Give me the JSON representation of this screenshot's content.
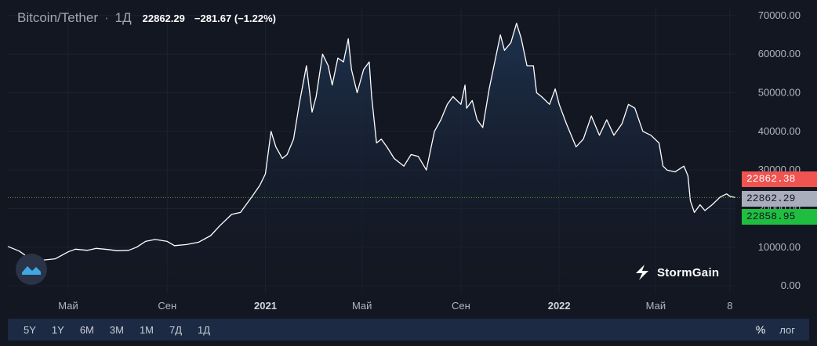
{
  "header": {
    "symbol": "Bitcoin/Tether",
    "separator": "·",
    "interval": "1Д",
    "last_price": "22862.29",
    "change": "−281.67 (−1.22%)"
  },
  "price_tags": {
    "ask": "22862.38",
    "last": "22862.29",
    "bid": "22858.95"
  },
  "toolbar": {
    "ranges": [
      "5Y",
      "1Y",
      "6M",
      "3M",
      "1M",
      "7Д",
      "1Д"
    ],
    "percent": "%",
    "log": "лог"
  },
  "brand": {
    "name": "StormGain"
  },
  "icons": {
    "brand": "stormgain-logo-icon",
    "badge": "tradingview-logo-icon"
  },
  "colors": {
    "background": "#131722",
    "line": "#ffffff",
    "area_top": "#1e3350",
    "ask": "#f05350",
    "last": "#a9aebc",
    "bid": "#1fbe40",
    "last_line": "#5a9a3a",
    "toolbar": "#1c2a44"
  },
  "chart_data": {
    "type": "area",
    "grid": true,
    "y_axis": {
      "ticks": [
        0,
        10000,
        20000,
        30000,
        40000,
        50000,
        60000,
        70000
      ],
      "tick_labels": [
        "0.00",
        "10000.00",
        "20000.00",
        "30000.00",
        "40000.00",
        "50000.00",
        "60000.00",
        "70000.00"
      ],
      "range": [
        -2000,
        72000
      ],
      "side": "right"
    },
    "x_axis": {
      "range": [
        "2020-02-16",
        "2022-08-08"
      ],
      "ticks": [
        {
          "date": "2020-05-01",
          "label": "Май",
          "bold": false
        },
        {
          "date": "2020-09-01",
          "label": "Сен",
          "bold": false
        },
        {
          "date": "2021-01-01",
          "label": "2021",
          "bold": true
        },
        {
          "date": "2021-05-01",
          "label": "Май",
          "bold": false
        },
        {
          "date": "2021-09-01",
          "label": "Сен",
          "bold": false
        },
        {
          "date": "2022-01-01",
          "label": "2022",
          "bold": true
        },
        {
          "date": "2022-05-01",
          "label": "Май",
          "bold": false
        },
        {
          "date": "2022-08-01",
          "label": "8",
          "bold": false
        }
      ]
    },
    "last_value": 22862.29,
    "series": [
      {
        "x": [
          "2020-02-16",
          "2020-03-01",
          "2020-03-08",
          "2020-03-13",
          "2020-03-20",
          "2020-04-01",
          "2020-04-15",
          "2020-05-01",
          "2020-05-10",
          "2020-05-25",
          "2020-06-05",
          "2020-06-20",
          "2020-07-01",
          "2020-07-15",
          "2020-07-25",
          "2020-08-05",
          "2020-08-17",
          "2020-09-01",
          "2020-09-10",
          "2020-09-25",
          "2020-10-10",
          "2020-10-25",
          "2020-11-05",
          "2020-11-20",
          "2020-12-01",
          "2020-12-15",
          "2020-12-25",
          "2021-01-01",
          "2021-01-08",
          "2021-01-14",
          "2021-01-22",
          "2021-01-28",
          "2021-02-05",
          "2021-02-12",
          "2021-02-21",
          "2021-02-28",
          "2021-03-05",
          "2021-03-13",
          "2021-03-20",
          "2021-03-25",
          "2021-04-01",
          "2021-04-08",
          "2021-04-14",
          "2021-04-18",
          "2021-04-25",
          "2021-05-03",
          "2021-05-10",
          "2021-05-13",
          "2021-05-19",
          "2021-05-25",
          "2021-06-01",
          "2021-06-10",
          "2021-06-22",
          "2021-07-01",
          "2021-07-10",
          "2021-07-20",
          "2021-07-30",
          "2021-08-07",
          "2021-08-15",
          "2021-08-22",
          "2021-09-01",
          "2021-09-06",
          "2021-09-08",
          "2021-09-15",
          "2021-09-21",
          "2021-09-28",
          "2021-10-06",
          "2021-10-12",
          "2021-10-20",
          "2021-10-25",
          "2021-11-02",
          "2021-11-09",
          "2021-11-15",
          "2021-11-22",
          "2021-11-30",
          "2021-12-04",
          "2021-12-10",
          "2021-12-20",
          "2021-12-27",
          "2022-01-01",
          "2022-01-10",
          "2022-01-22",
          "2022-01-31",
          "2022-02-10",
          "2022-02-20",
          "2022-03-01",
          "2022-03-10",
          "2022-03-20",
          "2022-03-28",
          "2022-04-05",
          "2022-04-15",
          "2022-04-25",
          "2022-05-05",
          "2022-05-10",
          "2022-05-15",
          "2022-05-25",
          "2022-06-05",
          "2022-06-10",
          "2022-06-13",
          "2022-06-18",
          "2022-06-25",
          "2022-07-01",
          "2022-07-10",
          "2022-07-20",
          "2022-07-28",
          "2022-08-01",
          "2022-08-08"
        ],
        "y": [
          10200,
          9000,
          8000,
          5000,
          6200,
          6700,
          7000,
          8800,
          9500,
          9200,
          9700,
          9400,
          9100,
          9200,
          10000,
          11500,
          12000,
          11500,
          10400,
          10700,
          11300,
          13000,
          15500,
          18500,
          19000,
          23000,
          26000,
          29000,
          40000,
          36000,
          33000,
          34000,
          38000,
          47000,
          57000,
          45000,
          49000,
          60000,
          57000,
          52000,
          59000,
          58000,
          64000,
          56000,
          50000,
          56000,
          58000,
          49000,
          37000,
          38000,
          36000,
          33000,
          31000,
          34000,
          33500,
          30000,
          40000,
          43000,
          47000,
          49000,
          47000,
          52000,
          46000,
          48000,
          43000,
          41000,
          51000,
          57000,
          65000,
          61000,
          63000,
          68000,
          64000,
          57000,
          57000,
          50000,
          49000,
          47000,
          51000,
          47000,
          42000,
          36000,
          38000,
          44000,
          39000,
          43000,
          39000,
          42000,
          47000,
          46000,
          40000,
          39000,
          37000,
          31000,
          30000,
          29500,
          31000,
          28500,
          22000,
          19000,
          21000,
          19500,
          21000,
          23000,
          23800,
          23200,
          22862
        ]
      }
    ]
  }
}
